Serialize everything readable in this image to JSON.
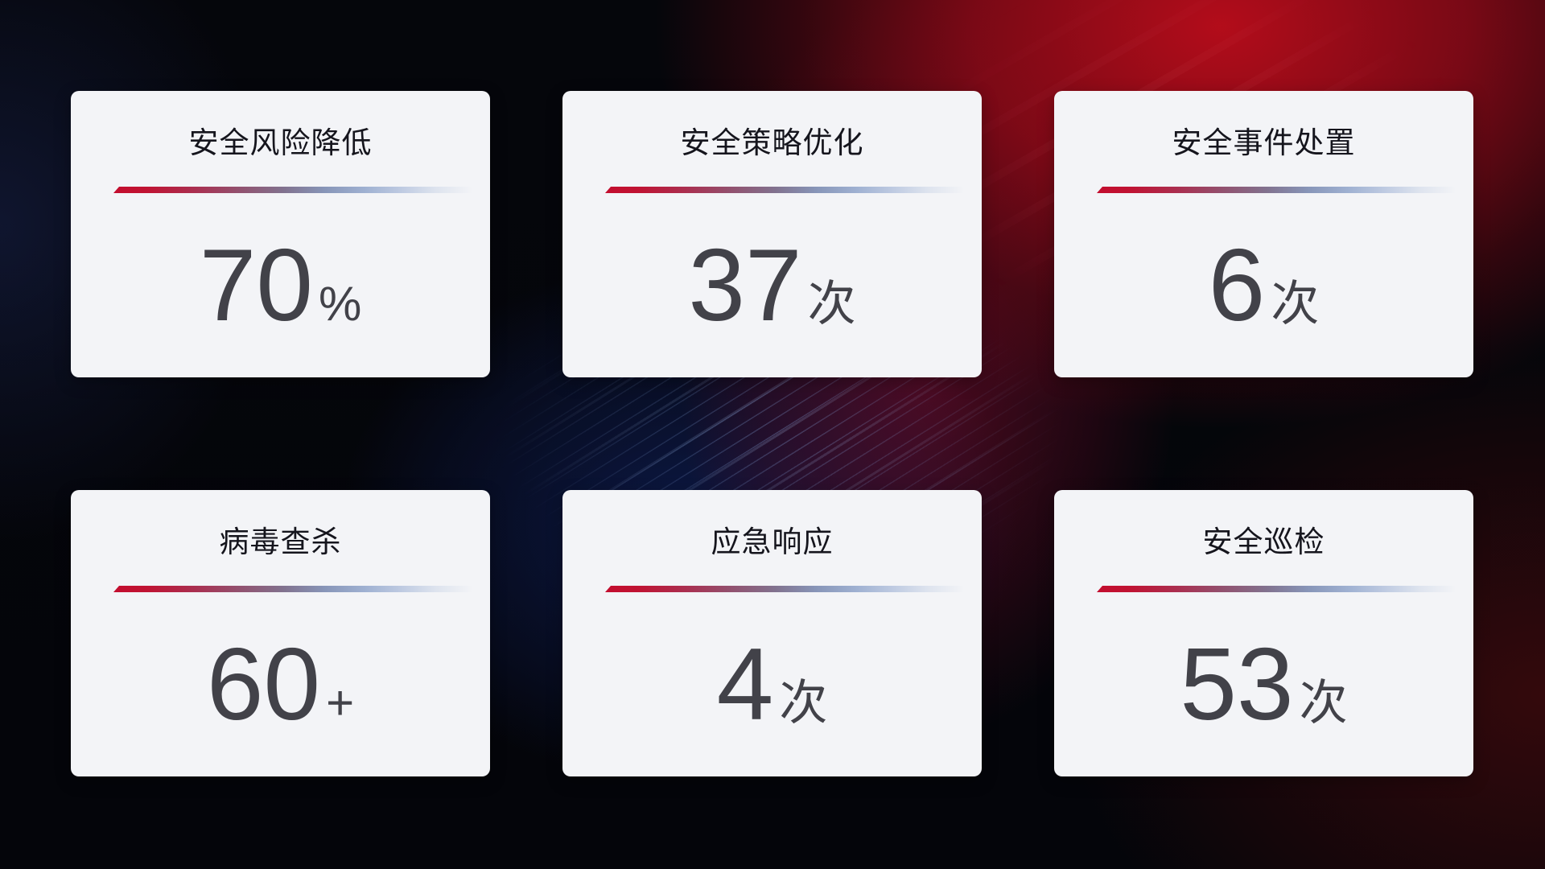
{
  "colors": {
    "card_background": "#f3f4f7",
    "title_color": "#15151d",
    "value_color": "#424249",
    "divider_red": "#c30d2e",
    "divider_blue": "#9fb1d2",
    "background_base": "#05060b",
    "background_red_glow": "#ba0d1b",
    "background_blue_glow": "#122670"
  },
  "cards": [
    {
      "title": "安全风险降低",
      "value": "70",
      "unit": "%"
    },
    {
      "title": "安全策略优化",
      "value": "37",
      "unit": "次"
    },
    {
      "title": "安全事件处置",
      "value": "6",
      "unit": "次"
    },
    {
      "title": "病毒查杀",
      "value": "60",
      "unit": "+"
    },
    {
      "title": "应急响应",
      "value": "4",
      "unit": "次"
    },
    {
      "title": "安全巡检",
      "value": "53",
      "unit": "次"
    }
  ]
}
